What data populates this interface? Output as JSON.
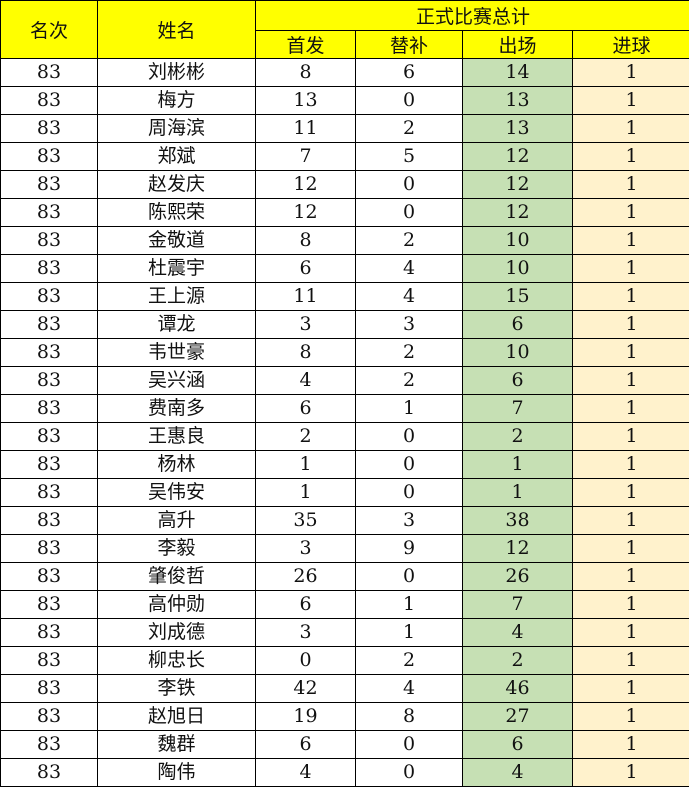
{
  "header": {
    "rank": "名次",
    "name": "姓名",
    "group": "正式比赛总计",
    "starts": "首发",
    "subs": "替补",
    "apps": "出场",
    "goals": "进球"
  },
  "colors": {
    "header": "#ffff00",
    "apps": "#c6e0b4",
    "goals": "#fff2cc"
  },
  "rows": [
    {
      "rank": "83",
      "name": "刘彬彬",
      "starts": "8",
      "subs": "6",
      "apps": "14",
      "goals": "1"
    },
    {
      "rank": "83",
      "name": "梅方",
      "starts": "13",
      "subs": "0",
      "apps": "13",
      "goals": "1"
    },
    {
      "rank": "83",
      "name": "周海滨",
      "starts": "11",
      "subs": "2",
      "apps": "13",
      "goals": "1"
    },
    {
      "rank": "83",
      "name": "郑斌",
      "starts": "7",
      "subs": "5",
      "apps": "12",
      "goals": "1"
    },
    {
      "rank": "83",
      "name": "赵发庆",
      "starts": "12",
      "subs": "0",
      "apps": "12",
      "goals": "1"
    },
    {
      "rank": "83",
      "name": "陈熙荣",
      "starts": "12",
      "subs": "0",
      "apps": "12",
      "goals": "1"
    },
    {
      "rank": "83",
      "name": "金敬道",
      "starts": "8",
      "subs": "2",
      "apps": "10",
      "goals": "1"
    },
    {
      "rank": "83",
      "name": "杜震宇",
      "starts": "6",
      "subs": "4",
      "apps": "10",
      "goals": "1"
    },
    {
      "rank": "83",
      "name": "王上源",
      "starts": "11",
      "subs": "4",
      "apps": "15",
      "goals": "1"
    },
    {
      "rank": "83",
      "name": "谭龙",
      "starts": "3",
      "subs": "3",
      "apps": "6",
      "goals": "1"
    },
    {
      "rank": "83",
      "name": "韦世豪",
      "starts": "8",
      "subs": "2",
      "apps": "10",
      "goals": "1"
    },
    {
      "rank": "83",
      "name": "吴兴涵",
      "starts": "4",
      "subs": "2",
      "apps": "6",
      "goals": "1"
    },
    {
      "rank": "83",
      "name": "费南多",
      "starts": "6",
      "subs": "1",
      "apps": "7",
      "goals": "1"
    },
    {
      "rank": "83",
      "name": "王惠良",
      "starts": "2",
      "subs": "0",
      "apps": "2",
      "goals": "1"
    },
    {
      "rank": "83",
      "name": "杨林",
      "starts": "1",
      "subs": "0",
      "apps": "1",
      "goals": "1"
    },
    {
      "rank": "83",
      "name": "吴伟安",
      "starts": "1",
      "subs": "0",
      "apps": "1",
      "goals": "1"
    },
    {
      "rank": "83",
      "name": "高升",
      "starts": "35",
      "subs": "3",
      "apps": "38",
      "goals": "1"
    },
    {
      "rank": "83",
      "name": "李毅",
      "starts": "3",
      "subs": "9",
      "apps": "12",
      "goals": "1"
    },
    {
      "rank": "83",
      "name": "肇俊哲",
      "starts": "26",
      "subs": "0",
      "apps": "26",
      "goals": "1"
    },
    {
      "rank": "83",
      "name": "高仲勋",
      "starts": "6",
      "subs": "1",
      "apps": "7",
      "goals": "1"
    },
    {
      "rank": "83",
      "name": "刘成德",
      "starts": "3",
      "subs": "1",
      "apps": "4",
      "goals": "1"
    },
    {
      "rank": "83",
      "name": "柳忠长",
      "starts": "0",
      "subs": "2",
      "apps": "2",
      "goals": "1"
    },
    {
      "rank": "83",
      "name": "李铁",
      "starts": "42",
      "subs": "4",
      "apps": "46",
      "goals": "1"
    },
    {
      "rank": "83",
      "name": "赵旭日",
      "starts": "19",
      "subs": "8",
      "apps": "27",
      "goals": "1"
    },
    {
      "rank": "83",
      "name": "魏群",
      "starts": "6",
      "subs": "0",
      "apps": "6",
      "goals": "1"
    },
    {
      "rank": "83",
      "name": "陶伟",
      "starts": "4",
      "subs": "0",
      "apps": "4",
      "goals": "1"
    }
  ]
}
